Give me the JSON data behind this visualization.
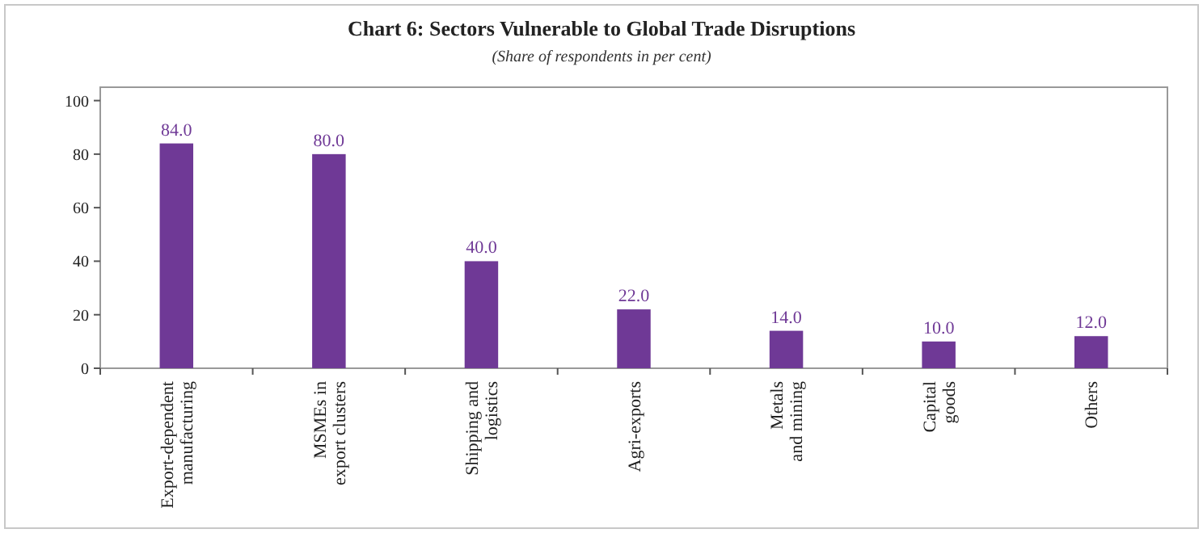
{
  "chart_data": {
    "type": "bar",
    "title": "Chart 6: Sectors Vulnerable to Global Trade Disruptions",
    "subtitle": "(Share of respondents in per cent)",
    "categories": [
      "Export-dependent manufacturing",
      "MSMEs in export clusters",
      "Shipping and logistics",
      "Agri-exports",
      "Metals and mining",
      "Capital goods",
      "Others"
    ],
    "values": [
      84.0,
      80.0,
      40.0,
      22.0,
      14.0,
      10.0,
      12.0
    ],
    "value_labels": [
      "84.0",
      "80.0",
      "40.0",
      "22.0",
      "14.0",
      "10.0",
      "12.0"
    ],
    "color": "#6f3996",
    "ylim": [
      0,
      105
    ],
    "yticks": [
      0,
      20,
      40,
      60,
      80,
      100
    ],
    "grid": false
  }
}
